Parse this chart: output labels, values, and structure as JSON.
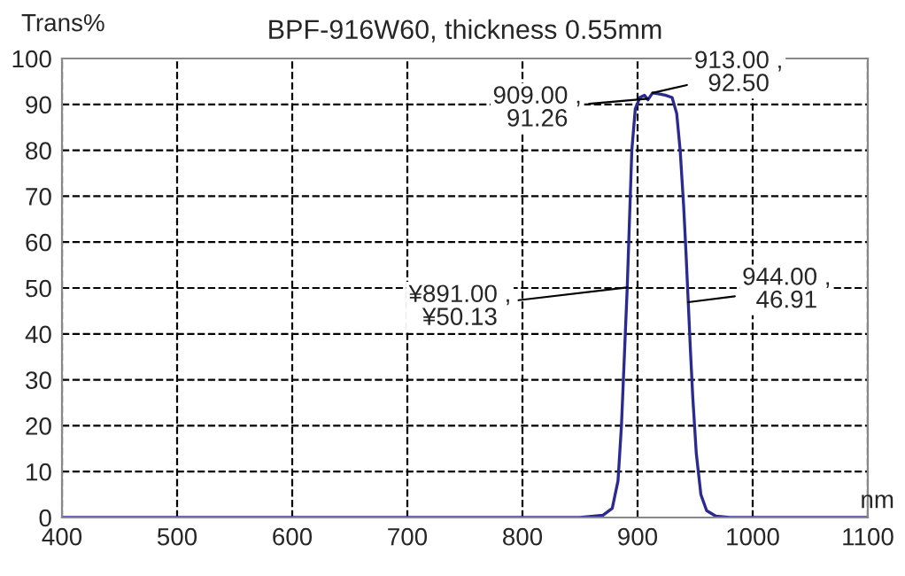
{
  "chart_data": {
    "type": "line",
    "title": "BPF-916W60, thickness 0.55mm",
    "xlabel": "nm",
    "ylabel": "Trans%",
    "series": [
      {
        "color": "#2b2b8f",
        "x": [
          400,
          500,
          600,
          700,
          800,
          850,
          870,
          878,
          883,
          886,
          889,
          891,
          893,
          895,
          898,
          902,
          906,
          909,
          913,
          918,
          924,
          930,
          934,
          937,
          940,
          942,
          944,
          946,
          948,
          951,
          955,
          960,
          968,
          980,
          1000,
          1100
        ],
        "values": [
          0,
          0,
          0,
          0,
          0,
          0,
          0.5,
          2,
          8,
          20,
          38,
          50,
          65,
          80,
          89,
          91.5,
          92,
          91,
          92.5,
          92.3,
          92,
          91.5,
          88,
          80,
          68,
          58,
          47,
          36,
          26,
          14,
          5,
          1.5,
          0.3,
          0,
          0,
          0
        ]
      }
    ],
    "annotations": [
      {
        "text": "909.00 ,\n91.26",
        "x": 909,
        "y": 91.26
      },
      {
        "text": "913.00 ,\n92.50",
        "x": 913,
        "y": 92.5
      },
      {
        "text": "¥891.00 ,\n¥50.13",
        "x": 891,
        "y": 50.13
      },
      {
        "text": "944.00 ,\n46.91",
        "x": 944,
        "y": 46.91
      }
    ],
    "xlim": [
      400,
      1100
    ],
    "ylim": [
      0,
      100
    ],
    "xticks": [
      400,
      500,
      600,
      700,
      800,
      900,
      1000,
      1100
    ],
    "yticks": [
      0,
      10,
      20,
      30,
      40,
      50,
      60,
      70,
      80,
      90,
      100
    ],
    "grid": true,
    "line_style": "solid",
    "marker": "none",
    "legend": false
  }
}
